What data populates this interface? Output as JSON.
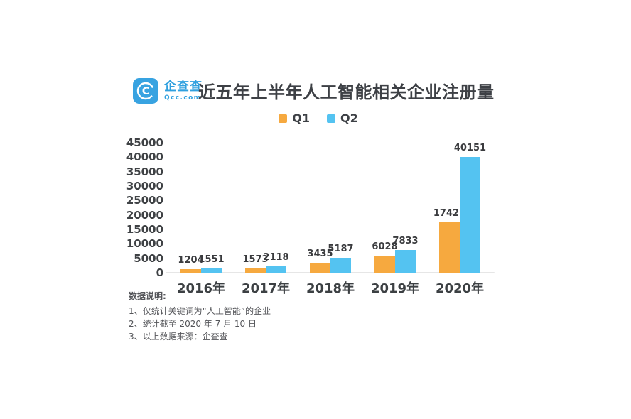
{
  "header": {
    "logo": {
      "name": "企查查",
      "domain": "Qcc.com"
    },
    "title": "近五年上半年人工智能相关企业注册量"
  },
  "chart_data": {
    "type": "bar",
    "title": "近五年上半年人工智能相关企业注册量",
    "categories": [
      "2016年",
      "2017年",
      "2018年",
      "2019年",
      "2020年"
    ],
    "series": [
      {
        "name": "Q1",
        "color": "#F6A93F",
        "values": [
          1204,
          1573,
          3435,
          6028,
          17422
        ]
      },
      {
        "name": "Q2",
        "color": "#54C3F1",
        "values": [
          1551,
          2118,
          5187,
          7833,
          40151
        ]
      }
    ],
    "ylim": [
      0,
      45000
    ],
    "ytick_step": 5000,
    "grid": false,
    "legend_position": "top-center",
    "xlabel": "",
    "ylabel": ""
  },
  "notes": {
    "heading": "数据说明:",
    "lines": [
      "1、仅统计关键词为“人工智能”的企业",
      "2、统计截至 2020 年 7 月 10 日",
      "3、以上数据来源：企查查"
    ]
  },
  "colors": {
    "q1_orange": "#F6A93F",
    "q2_blue": "#54C3F1",
    "logo_blue": "#2FA0DF",
    "logo_icon_blue": "#38A3E1",
    "text_dark": "#3D4045",
    "notes_gray": "#55565A",
    "baseline_gray": "#E6E6E6"
  }
}
